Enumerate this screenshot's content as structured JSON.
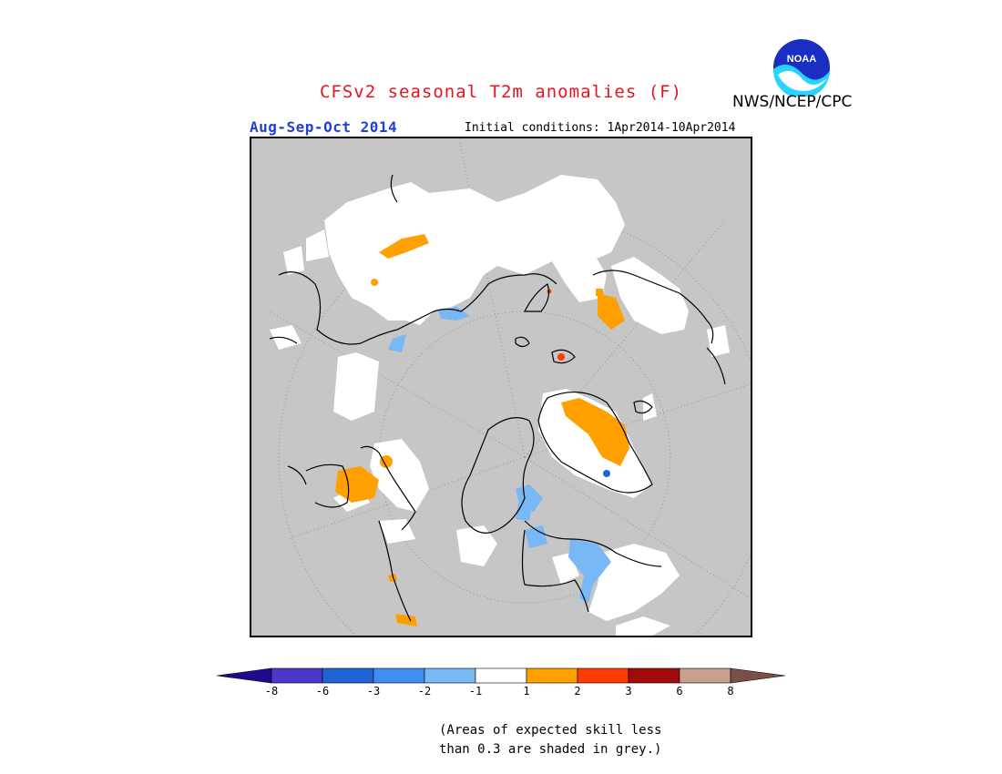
{
  "header": {
    "title": "CFSv2 seasonal T2m anomalies (F)",
    "agency": "NWS/NCEP/CPC",
    "season": "Aug-Sep-Oct 2014",
    "initial_conditions": "Initial conditions: 1Apr2014-10Apr2014",
    "logo_text": "NOAA"
  },
  "colors": {
    "title": "#e8141e",
    "season": "#1f3fd9",
    "no_skill_grey": "#c6c6c6",
    "near_normal": "#ffffff"
  },
  "colorbar": {
    "bins": [
      {
        "range": "< -8",
        "color": "#1e0a8c"
      },
      {
        "range": "-8 to -6",
        "color": "#4b37c8"
      },
      {
        "range": "-6 to -3",
        "color": "#1e64d2"
      },
      {
        "range": "-3 to -2",
        "color": "#418ef0"
      },
      {
        "range": "-2 to -1",
        "color": "#78b8f5"
      },
      {
        "range": "-1 to 1",
        "color": "#ffffff"
      },
      {
        "range": "1 to 2",
        "color": "#ffa000"
      },
      {
        "range": "2 to 3",
        "color": "#ff3c00"
      },
      {
        "range": "3 to 6",
        "color": "#a00a0a"
      },
      {
        "range": "6 to 8",
        "color": "#c8a08c"
      },
      {
        "range": "> 8",
        "color": "#785046"
      }
    ],
    "ticks": [
      "-8",
      "-6",
      "-3",
      "-2",
      "-1",
      "1",
      "2",
      "3",
      "6",
      "8"
    ]
  },
  "footnote": {
    "line1": "(Areas of expected skill less",
    "line2": "than 0.3 are shaded in grey.)"
  }
}
